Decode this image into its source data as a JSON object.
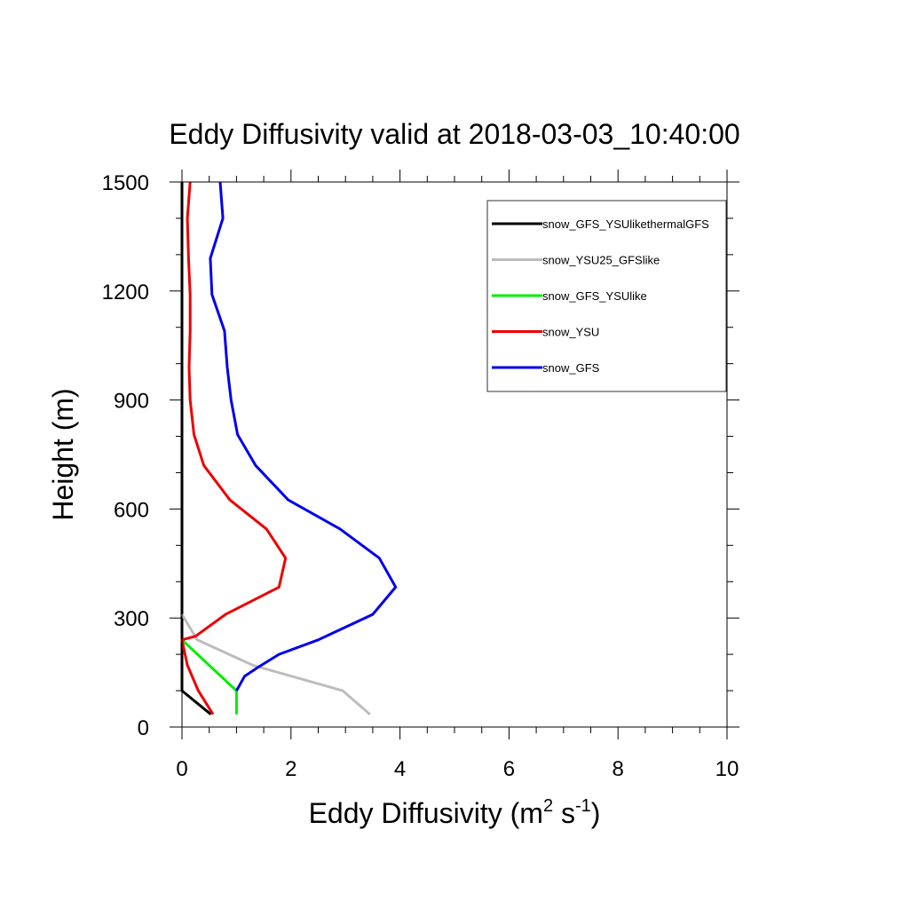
{
  "chart_data": {
    "type": "line",
    "title": "Eddy Diffusivity valid at 2018-03-03_10:40:00",
    "xlabel": "Eddy Diffusivity (m",
    "xlabel_units": {
      "m_exp": "2",
      "s": " s",
      "s_exp": "-1",
      "close": ")"
    },
    "ylabel": "Height (m)",
    "xlim": [
      0,
      10
    ],
    "ylim": [
      0,
      1500
    ],
    "x_ticks": [
      "0",
      "2",
      "4",
      "6",
      "8",
      "10"
    ],
    "y_ticks": [
      "0",
      "300",
      "600",
      "900",
      "1200",
      "1500"
    ],
    "grid": false,
    "legend_position": "top-right",
    "series": [
      {
        "name": "snow_GFS_YSUlikethermalGFS",
        "color": "#000000",
        "points": [
          [
            0.53,
            35
          ],
          [
            0.0,
            100
          ],
          [
            0.0,
            240
          ],
          [
            0.0,
            1500
          ]
        ]
      },
      {
        "name": "snow_YSU25_GFSlike",
        "color": "#bdbdbd",
        "points": [
          [
            3.45,
            35
          ],
          [
            2.95,
            100
          ],
          [
            1.3,
            170
          ],
          [
            0.28,
            240
          ],
          [
            0.0,
            310
          ]
        ]
      },
      {
        "name": "snow_GFS_YSUlike",
        "color": "#00ee00",
        "points": [
          [
            1.0,
            35
          ],
          [
            1.0,
            100
          ],
          [
            0.0,
            240
          ]
        ]
      },
      {
        "name": "snow_YSU",
        "color": "#ee0000",
        "points": [
          [
            0.57,
            35
          ],
          [
            0.3,
            100
          ],
          [
            0.1,
            170
          ],
          [
            0.0,
            240
          ],
          [
            0.25,
            250
          ],
          [
            0.8,
            310
          ],
          [
            1.78,
            385
          ],
          [
            1.9,
            465
          ],
          [
            1.55,
            545
          ],
          [
            0.88,
            625
          ],
          [
            0.4,
            720
          ],
          [
            0.22,
            805
          ],
          [
            0.15,
            900
          ],
          [
            0.13,
            990
          ],
          [
            0.15,
            1090
          ],
          [
            0.15,
            1190
          ],
          [
            0.12,
            1290
          ],
          [
            0.1,
            1400
          ],
          [
            0.15,
            1500
          ]
        ]
      },
      {
        "name": "snow_GFS",
        "color": "#0000ee",
        "points": [
          [
            1.0,
            100
          ],
          [
            1.15,
            140
          ],
          [
            1.4,
            165
          ],
          [
            1.78,
            200
          ],
          [
            2.5,
            240
          ],
          [
            3.5,
            310
          ],
          [
            3.92,
            385
          ],
          [
            3.62,
            465
          ],
          [
            2.9,
            545
          ],
          [
            1.95,
            625
          ],
          [
            1.35,
            720
          ],
          [
            1.02,
            805
          ],
          [
            0.9,
            900
          ],
          [
            0.83,
            990
          ],
          [
            0.78,
            1090
          ],
          [
            0.55,
            1190
          ],
          [
            0.52,
            1290
          ],
          [
            0.75,
            1400
          ],
          [
            0.7,
            1500
          ]
        ]
      }
    ]
  }
}
